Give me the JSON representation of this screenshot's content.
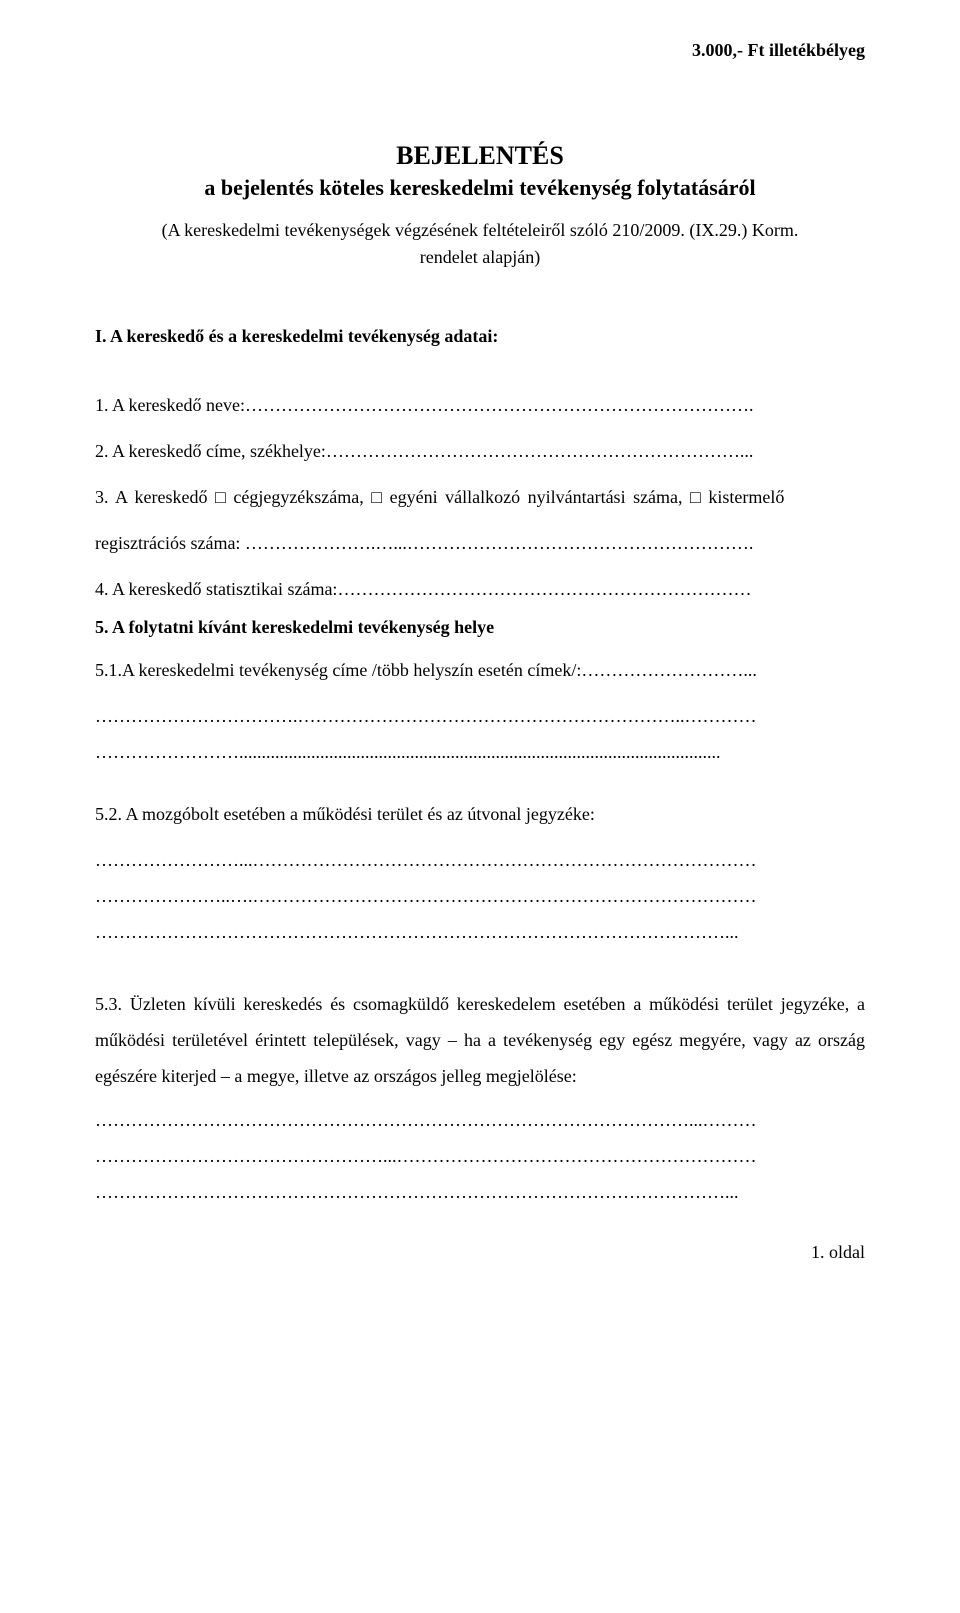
{
  "stamp": "3.000,- Ft illetékbélyeg",
  "title": "BEJELENTÉS",
  "subtitle": "a bejelentés köteles kereskedelmi tevékenység folytatásáról",
  "ref_line1": "(A kereskedelmi tevékenységek végzésének feltételeiről szóló 210/2009. (IX.29.) Korm.",
  "ref_line2": "rendelet alapján)",
  "section1": "I. A kereskedő és a kereskedelmi tevékenység adatai:",
  "item1": "1. A kereskedő neve:………………………………………………………………………….",
  "item2": "2. A kereskedő címe, székhelye:……………………………………………………………...",
  "item3a": "3. A kereskedő □ cégjegyzékszáma, □ egyéni vállalkozó nyilvántartási száma, □ kistermelő",
  "item3b": "regisztrációs száma: ………………….…...………………………………………………….",
  "item4": "4. A kereskedő statisztikai száma:……………………………………………………………",
  "item5_head": "5. A folytatni kívánt kereskedelmi tevékenység helye",
  "item51a": "5.1.A kereskedelmi tevékenység címe /több helyszín esetén címek/:………………………...",
  "item51b": "…………………………….………………………………………………………..…………",
  "item51c": "……………………...........................................................................................................",
  "item52a": "5.2. A mozgóbolt esetében a működési terület és az útvonal jegyzéke:",
  "item52b": "……………………...…………………………………………………………………………",
  "item52c": "…………………..….…………………………………………………………………………",
  "item52d": "……………………………………………………………………………………………...",
  "p53": "5.3. Üzleten kívüli kereskedés és csomagküldő kereskedelem esetében a működési terület jegyzéke, a működési területével érintett települések, vagy – ha a tevékenység egy egész megyére, vagy az ország egészére kiterjed – a megye, illetve az országos jelleg megjelölése:",
  "p53_dots1": "………………………………………………………………………………………...………",
  "p53_dots2": "…………………………………………...……………………………………………………",
  "p53_dots3": "……………………………………………………………………………………………...",
  "page_num": "1. oldal"
}
